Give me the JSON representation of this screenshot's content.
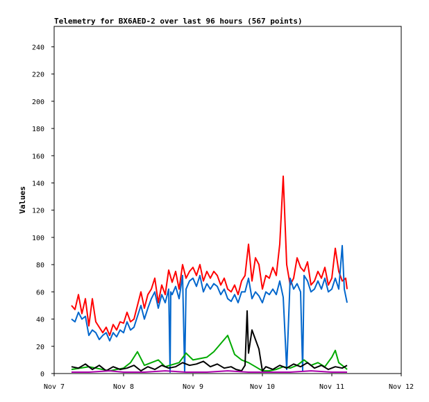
{
  "chart_data": {
    "type": "line",
    "title": "Telemetry for BX6AED-2 over last 96 hours (567 points)",
    "xlabel": "",
    "ylabel": "Values",
    "ylim": [
      0,
      255
    ],
    "yticks": [
      0,
      20,
      40,
      60,
      80,
      100,
      120,
      140,
      160,
      180,
      200,
      220,
      240
    ],
    "xlim": [
      7.0,
      12.0
    ],
    "xticks": [
      {
        "value": 7,
        "label": "Nov 7"
      },
      {
        "value": 8,
        "label": "Nov 8"
      },
      {
        "value": 9,
        "label": "Nov 9"
      },
      {
        "value": 10,
        "label": "Nov 10"
      },
      {
        "value": 11,
        "label": "Nov 11"
      },
      {
        "value": 12,
        "label": "Nov 12"
      }
    ],
    "grid": false,
    "legend": "none",
    "series": [
      {
        "color": "#ff0000",
        "points": [
          [
            7.25,
            50
          ],
          [
            7.3,
            47
          ],
          [
            7.35,
            58
          ],
          [
            7.4,
            44
          ],
          [
            7.45,
            55
          ],
          [
            7.5,
            35
          ],
          [
            7.55,
            55
          ],
          [
            7.6,
            38
          ],
          [
            7.65,
            34
          ],
          [
            7.7,
            30
          ],
          [
            7.75,
            34
          ],
          [
            7.8,
            28
          ],
          [
            7.85,
            36
          ],
          [
            7.9,
            32
          ],
          [
            7.95,
            38
          ],
          [
            8.0,
            37
          ],
          [
            8.05,
            45
          ],
          [
            8.1,
            38
          ],
          [
            8.15,
            40
          ],
          [
            8.2,
            50
          ],
          [
            8.25,
            60
          ],
          [
            8.3,
            48
          ],
          [
            8.35,
            58
          ],
          [
            8.4,
            62
          ],
          [
            8.45,
            70
          ],
          [
            8.5,
            52
          ],
          [
            8.55,
            65
          ],
          [
            8.6,
            58
          ],
          [
            8.65,
            76
          ],
          [
            8.7,
            67
          ],
          [
            8.75,
            75
          ],
          [
            8.8,
            62
          ],
          [
            8.85,
            80
          ],
          [
            8.9,
            70
          ],
          [
            8.95,
            75
          ],
          [
            9.0,
            78
          ],
          [
            9.05,
            72
          ],
          [
            9.1,
            80
          ],
          [
            9.15,
            68
          ],
          [
            9.2,
            75
          ],
          [
            9.25,
            70
          ],
          [
            9.3,
            75
          ],
          [
            9.35,
            72
          ],
          [
            9.4,
            65
          ],
          [
            9.45,
            70
          ],
          [
            9.5,
            62
          ],
          [
            9.55,
            60
          ],
          [
            9.6,
            65
          ],
          [
            9.65,
            58
          ],
          [
            9.7,
            68
          ],
          [
            9.75,
            72
          ],
          [
            9.8,
            95
          ],
          [
            9.85,
            68
          ],
          [
            9.9,
            85
          ],
          [
            9.95,
            80
          ],
          [
            10.0,
            62
          ],
          [
            10.05,
            72
          ],
          [
            10.1,
            70
          ],
          [
            10.15,
            78
          ],
          [
            10.2,
            72
          ],
          [
            10.25,
            95
          ],
          [
            10.3,
            145
          ],
          [
            10.35,
            80
          ],
          [
            10.4,
            65
          ],
          [
            10.45,
            70
          ],
          [
            10.5,
            85
          ],
          [
            10.55,
            78
          ],
          [
            10.6,
            75
          ],
          [
            10.65,
            82
          ],
          [
            10.7,
            65
          ],
          [
            10.75,
            68
          ],
          [
            10.8,
            75
          ],
          [
            10.85,
            70
          ],
          [
            10.9,
            78
          ],
          [
            10.95,
            65
          ],
          [
            11.0,
            70
          ],
          [
            11.05,
            92
          ],
          [
            11.1,
            75
          ],
          [
            11.15,
            68
          ],
          [
            11.2,
            70
          ],
          [
            11.22,
            62
          ]
        ]
      },
      {
        "color": "#0066cc",
        "points": [
          [
            7.25,
            40
          ],
          [
            7.3,
            38
          ],
          [
            7.35,
            45
          ],
          [
            7.4,
            40
          ],
          [
            7.45,
            42
          ],
          [
            7.5,
            28
          ],
          [
            7.55,
            32
          ],
          [
            7.6,
            30
          ],
          [
            7.65,
            25
          ],
          [
            7.7,
            28
          ],
          [
            7.75,
            30
          ],
          [
            7.8,
            24
          ],
          [
            7.85,
            30
          ],
          [
            7.9,
            27
          ],
          [
            7.95,
            32
          ],
          [
            8.0,
            30
          ],
          [
            8.05,
            38
          ],
          [
            8.1,
            32
          ],
          [
            8.15,
            34
          ],
          [
            8.2,
            42
          ],
          [
            8.25,
            50
          ],
          [
            8.3,
            40
          ],
          [
            8.35,
            48
          ],
          [
            8.4,
            55
          ],
          [
            8.45,
            60
          ],
          [
            8.5,
            48
          ],
          [
            8.55,
            58
          ],
          [
            8.6,
            52
          ],
          [
            8.65,
            62
          ],
          [
            8.67,
            1
          ],
          [
            8.68,
            60
          ],
          [
            8.7,
            58
          ],
          [
            8.75,
            64
          ],
          [
            8.8,
            55
          ],
          [
            8.85,
            72
          ],
          [
            8.88,
            1
          ],
          [
            8.9,
            62
          ],
          [
            8.95,
            68
          ],
          [
            9.0,
            70
          ],
          [
            9.05,
            64
          ],
          [
            9.1,
            72
          ],
          [
            9.15,
            60
          ],
          [
            9.2,
            66
          ],
          [
            9.25,
            62
          ],
          [
            9.3,
            66
          ],
          [
            9.35,
            64
          ],
          [
            9.4,
            58
          ],
          [
            9.45,
            62
          ],
          [
            9.5,
            55
          ],
          [
            9.55,
            53
          ],
          [
            9.6,
            58
          ],
          [
            9.65,
            52
          ],
          [
            9.7,
            60
          ],
          [
            9.75,
            60
          ],
          [
            9.8,
            70
          ],
          [
            9.85,
            55
          ],
          [
            9.9,
            60
          ],
          [
            9.95,
            57
          ],
          [
            10.0,
            52
          ],
          [
            10.05,
            60
          ],
          [
            10.1,
            58
          ],
          [
            10.15,
            62
          ],
          [
            10.2,
            58
          ],
          [
            10.25,
            68
          ],
          [
            10.3,
            56
          ],
          [
            10.35,
            3
          ],
          [
            10.4,
            70
          ],
          [
            10.45,
            62
          ],
          [
            10.5,
            66
          ],
          [
            10.55,
            60
          ],
          [
            10.58,
            2
          ],
          [
            10.6,
            72
          ],
          [
            10.65,
            68
          ],
          [
            10.7,
            60
          ],
          [
            10.75,
            62
          ],
          [
            10.8,
            68
          ],
          [
            10.85,
            62
          ],
          [
            10.9,
            70
          ],
          [
            10.95,
            60
          ],
          [
            11.0,
            62
          ],
          [
            11.05,
            70
          ],
          [
            11.1,
            62
          ],
          [
            11.15,
            94
          ],
          [
            11.18,
            62
          ],
          [
            11.22,
            52
          ]
        ]
      },
      {
        "color": "#00aa00",
        "points": [
          [
            7.25,
            3
          ],
          [
            7.5,
            5
          ],
          [
            7.8,
            2
          ],
          [
            8.0,
            4
          ],
          [
            8.1,
            8
          ],
          [
            8.2,
            16
          ],
          [
            8.3,
            6
          ],
          [
            8.5,
            10
          ],
          [
            8.6,
            5
          ],
          [
            8.8,
            8
          ],
          [
            8.9,
            15
          ],
          [
            9.0,
            10
          ],
          [
            9.2,
            12
          ],
          [
            9.3,
            16
          ],
          [
            9.4,
            22
          ],
          [
            9.5,
            28
          ],
          [
            9.6,
            14
          ],
          [
            9.7,
            10
          ],
          [
            9.8,
            8
          ],
          [
            9.9,
            5
          ],
          [
            10.0,
            2
          ],
          [
            10.1,
            2
          ],
          [
            10.2,
            3
          ],
          [
            10.3,
            5
          ],
          [
            10.4,
            4
          ],
          [
            10.5,
            6
          ],
          [
            10.6,
            10
          ],
          [
            10.7,
            6
          ],
          [
            10.8,
            8
          ],
          [
            10.9,
            5
          ],
          [
            11.0,
            12
          ],
          [
            11.05,
            17
          ],
          [
            11.1,
            8
          ],
          [
            11.2,
            4
          ],
          [
            11.22,
            3
          ]
        ]
      },
      {
        "color": "#000000",
        "points": [
          [
            7.25,
            5
          ],
          [
            7.35,
            4
          ],
          [
            7.45,
            7
          ],
          [
            7.55,
            3
          ],
          [
            7.65,
            6
          ],
          [
            7.75,
            2
          ],
          [
            7.85,
            5
          ],
          [
            7.95,
            3
          ],
          [
            8.05,
            4
          ],
          [
            8.15,
            6
          ],
          [
            8.25,
            2
          ],
          [
            8.35,
            5
          ],
          [
            8.45,
            3
          ],
          [
            8.55,
            6
          ],
          [
            8.65,
            4
          ],
          [
            8.75,
            5
          ],
          [
            8.85,
            8
          ],
          [
            8.95,
            6
          ],
          [
            9.05,
            7
          ],
          [
            9.15,
            9
          ],
          [
            9.25,
            5
          ],
          [
            9.35,
            7
          ],
          [
            9.45,
            4
          ],
          [
            9.55,
            5
          ],
          [
            9.62,
            3
          ],
          [
            9.7,
            2
          ],
          [
            9.75,
            6
          ],
          [
            9.78,
            46
          ],
          [
            9.8,
            15
          ],
          [
            9.85,
            32
          ],
          [
            9.9,
            25
          ],
          [
            9.95,
            18
          ],
          [
            10.0,
            2
          ],
          [
            10.05,
            5
          ],
          [
            10.15,
            3
          ],
          [
            10.25,
            6
          ],
          [
            10.35,
            4
          ],
          [
            10.45,
            7
          ],
          [
            10.55,
            5
          ],
          [
            10.65,
            8
          ],
          [
            10.75,
            4
          ],
          [
            10.85,
            6
          ],
          [
            10.95,
            3
          ],
          [
            11.05,
            5
          ],
          [
            11.15,
            4
          ],
          [
            11.22,
            6
          ]
        ]
      },
      {
        "color": "#aa00aa",
        "points": [
          [
            7.25,
            1
          ],
          [
            7.5,
            1
          ],
          [
            7.8,
            2
          ],
          [
            8.0,
            1
          ],
          [
            8.3,
            1
          ],
          [
            8.6,
            2
          ],
          [
            8.9,
            1
          ],
          [
            9.2,
            1
          ],
          [
            9.5,
            2
          ],
          [
            9.8,
            1
          ],
          [
            10.1,
            1
          ],
          [
            10.4,
            1
          ],
          [
            10.7,
            2
          ],
          [
            11.0,
            1
          ],
          [
            11.22,
            1
          ]
        ]
      }
    ]
  }
}
